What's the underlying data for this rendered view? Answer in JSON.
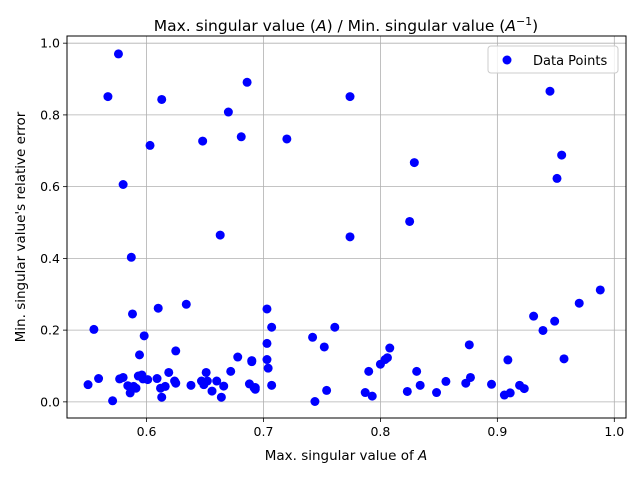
{
  "chart_data": {
    "type": "scatter",
    "title": "Max. singular value (A) / Min. singular value (A⁻¹)",
    "xlabel": "Max. singular value of A",
    "ylabel": "Min. singular value's relative error",
    "xlim": [
      0.532,
      1.01
    ],
    "ylim": [
      -0.045,
      1.02
    ],
    "xticks": [
      0.6,
      0.7,
      0.8,
      0.9,
      1.0
    ],
    "xtick_labels": [
      "0.6",
      "0.7",
      "0.8",
      "0.9",
      "1.0"
    ],
    "yticks": [
      0.0,
      0.2,
      0.4,
      0.6,
      0.8,
      1.0
    ],
    "ytick_labels": [
      "0.0",
      "0.2",
      "0.4",
      "0.6",
      "0.8",
      "1.0"
    ],
    "grid": true,
    "legend_position": "top-right",
    "series": [
      {
        "name": "Data Points",
        "color": "#0000ff",
        "points": [
          [
            0.55,
            0.048
          ],
          [
            0.555,
            0.202
          ],
          [
            0.559,
            0.065
          ],
          [
            0.567,
            0.851
          ],
          [
            0.571,
            0.003
          ],
          [
            0.576,
            0.97
          ],
          [
            0.577,
            0.064
          ],
          [
            0.58,
            0.068
          ],
          [
            0.58,
            0.606
          ],
          [
            0.584,
            0.045
          ],
          [
            0.586,
            0.025
          ],
          [
            0.587,
            0.403
          ],
          [
            0.588,
            0.245
          ],
          [
            0.589,
            0.043
          ],
          [
            0.591,
            0.038
          ],
          [
            0.593,
            0.072
          ],
          [
            0.594,
            0.131
          ],
          [
            0.596,
            0.075
          ],
          [
            0.597,
            0.064
          ],
          [
            0.598,
            0.184
          ],
          [
            0.601,
            0.062
          ],
          [
            0.603,
            0.715
          ],
          [
            0.609,
            0.065
          ],
          [
            0.61,
            0.261
          ],
          [
            0.612,
            0.038
          ],
          [
            0.613,
            0.843
          ],
          [
            0.613,
            0.013
          ],
          [
            0.616,
            0.043
          ],
          [
            0.619,
            0.082
          ],
          [
            0.624,
            0.058
          ],
          [
            0.625,
            0.052
          ],
          [
            0.625,
            0.142
          ],
          [
            0.634,
            0.272
          ],
          [
            0.638,
            0.046
          ],
          [
            0.647,
            0.058
          ],
          [
            0.648,
            0.727
          ],
          [
            0.649,
            0.048
          ],
          [
            0.651,
            0.082
          ],
          [
            0.652,
            0.058
          ],
          [
            0.656,
            0.03
          ],
          [
            0.66,
            0.058
          ],
          [
            0.663,
            0.465
          ],
          [
            0.664,
            0.013
          ],
          [
            0.666,
            0.044
          ],
          [
            0.67,
            0.808
          ],
          [
            0.672,
            0.085
          ],
          [
            0.678,
            0.125
          ],
          [
            0.681,
            0.739
          ],
          [
            0.686,
            0.891
          ],
          [
            0.688,
            0.05
          ],
          [
            0.69,
            0.115
          ],
          [
            0.69,
            0.112
          ],
          [
            0.692,
            0.039
          ],
          [
            0.693,
            0.035
          ],
          [
            0.693,
            0.04
          ],
          [
            0.703,
            0.259
          ],
          [
            0.703,
            0.163
          ],
          [
            0.703,
            0.118
          ],
          [
            0.704,
            0.094
          ],
          [
            0.707,
            0.046
          ],
          [
            0.707,
            0.208
          ],
          [
            0.72,
            0.733
          ],
          [
            0.742,
            0.18
          ],
          [
            0.744,
            0.001
          ],
          [
            0.752,
            0.153
          ],
          [
            0.754,
            0.032
          ],
          [
            0.761,
            0.208
          ],
          [
            0.774,
            0.851
          ],
          [
            0.774,
            0.46
          ],
          [
            0.787,
            0.026
          ],
          [
            0.79,
            0.085
          ],
          [
            0.793,
            0.016
          ],
          [
            0.8,
            0.105
          ],
          [
            0.804,
            0.118
          ],
          [
            0.806,
            0.123
          ],
          [
            0.808,
            0.15
          ],
          [
            0.823,
            0.029
          ],
          [
            0.825,
            0.503
          ],
          [
            0.829,
            0.667
          ],
          [
            0.831,
            0.085
          ],
          [
            0.834,
            0.046
          ],
          [
            0.848,
            0.026
          ],
          [
            0.856,
            0.057
          ],
          [
            0.873,
            0.052
          ],
          [
            0.876,
            0.159
          ],
          [
            0.877,
            0.068
          ],
          [
            0.895,
            0.049
          ],
          [
            0.906,
            0.019
          ],
          [
            0.909,
            0.117
          ],
          [
            0.911,
            0.025
          ],
          [
            0.919,
            0.046
          ],
          [
            0.923,
            0.037
          ],
          [
            0.931,
            0.239
          ],
          [
            0.939,
            0.199
          ],
          [
            0.945,
            0.866
          ],
          [
            0.949,
            0.225
          ],
          [
            0.951,
            0.623
          ],
          [
            0.955,
            0.688
          ],
          [
            0.957,
            0.12
          ],
          [
            0.97,
            0.275
          ],
          [
            0.988,
            0.312
          ]
        ]
      }
    ]
  }
}
